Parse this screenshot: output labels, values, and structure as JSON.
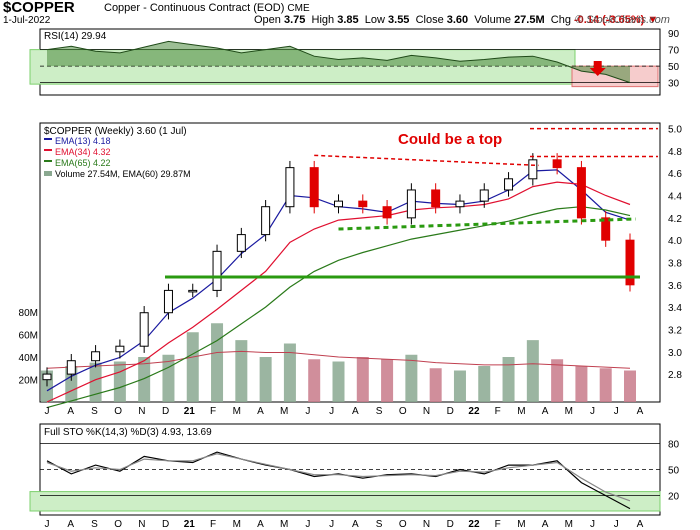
{
  "header": {
    "symbol": "$COPPER",
    "description": "Copper - Continuous Contract (EOD)",
    "exchange": "CME",
    "date": "1-Jul-2022",
    "open_label": "Open",
    "open": "3.75",
    "high_label": "High",
    "high": "3.85",
    "low_label": "Low",
    "low": "3.55",
    "close_label": "Close",
    "close": "3.60",
    "volume_label": "Volume",
    "volume": "27.5M",
    "chg_label": "Chg",
    "chg": "-0.14 (-3.65%)",
    "chg_arrow": "▼",
    "brand": "© StockCharts.com"
  },
  "chart_data": [
    {
      "type": "line",
      "panel": "RSI(14)",
      "legend": "RSI(14) 29.94",
      "ylim": [
        15,
        95
      ],
      "yticks": [
        90,
        70,
        50,
        30
      ],
      "reference_lines": [
        70,
        50,
        30
      ],
      "x_dates": [
        "Jul 20",
        "Aug 20",
        "Sep 20",
        "Oct 20",
        "Nov 20",
        "Dec 20",
        "Jan 21",
        "Feb 21",
        "Mar 21",
        "Apr 21",
        "May 21",
        "Jun 21",
        "Jul 21",
        "Aug 21",
        "Sep 21",
        "Oct 21",
        "Nov 21",
        "Dec 21",
        "Jan 22",
        "Feb 22",
        "Mar 22",
        "Apr 22",
        "May 22",
        "Jun 22",
        "Jul 22"
      ],
      "values": [
        70,
        74,
        68,
        66,
        73,
        80,
        76,
        72,
        66,
        70,
        74,
        62,
        58,
        60,
        57,
        63,
        60,
        56,
        58,
        61,
        62,
        55,
        44,
        40,
        30
      ],
      "annotations": [
        {
          "type": "arrow",
          "color": "#e00000",
          "at": "Jun 22"
        }
      ]
    },
    {
      "type": "candlestick",
      "panel": "price",
      "legend": "$COPPER (Weekly) 3.60 (1 Jul)",
      "ylim": [
        2.55,
        5.05
      ],
      "yticks": [
        5.0,
        4.8,
        4.6,
        4.4,
        4.2,
        4.0,
        3.8,
        3.6,
        3.4,
        3.2,
        3.0,
        2.8
      ],
      "x_tick_labels": [
        "J",
        "A",
        "S",
        "O",
        "N",
        "D",
        "21",
        "F",
        "M",
        "A",
        "M",
        "J",
        "J",
        "A",
        "S",
        "O",
        "N",
        "D",
        "22",
        "F",
        "M",
        "A",
        "M",
        "J",
        "J",
        "A"
      ],
      "x_dates": [
        "Jul 20",
        "Aug 20",
        "Sep 20",
        "Oct 20",
        "Nov 20",
        "Dec 20",
        "Jan 21",
        "Feb 21",
        "Mar 21",
        "Apr 21",
        "May 21",
        "Jun 21",
        "Jul 21",
        "Aug 21",
        "Sep 21",
        "Oct 21",
        "Nov 21",
        "Dec 21",
        "Jan 22",
        "Feb 22",
        "Mar 22",
        "Apr 22",
        "May 22",
        "Jun 22",
        "Jul 22"
      ],
      "close": [
        2.8,
        2.92,
        3.0,
        3.05,
        3.35,
        3.55,
        3.55,
        3.9,
        4.05,
        4.3,
        4.65,
        4.3,
        4.35,
        4.3,
        4.2,
        4.45,
        4.3,
        4.35,
        4.45,
        4.55,
        4.72,
        4.65,
        4.2,
        4.0,
        3.6
      ],
      "series": [
        {
          "name": "EMA(13)",
          "legend": "EMA(13) 4.18",
          "color": "#1a1aa0",
          "values": [
            2.65,
            2.78,
            2.88,
            2.95,
            3.1,
            3.35,
            3.48,
            3.65,
            3.88,
            4.05,
            4.4,
            4.38,
            4.3,
            4.28,
            4.25,
            4.35,
            4.33,
            4.32,
            4.35,
            4.45,
            4.62,
            4.63,
            4.45,
            4.25,
            4.18
          ]
        },
        {
          "name": "EMA(34)",
          "legend": "EMA(34) 4.32",
          "color": "#e01030",
          "values": [
            2.55,
            2.65,
            2.75,
            2.82,
            2.92,
            3.08,
            3.22,
            3.38,
            3.55,
            3.72,
            3.98,
            4.1,
            4.18,
            4.2,
            4.22,
            4.27,
            4.29,
            4.3,
            4.32,
            4.37,
            4.48,
            4.52,
            4.5,
            4.4,
            4.32
          ]
        },
        {
          "name": "EMA(65)",
          "legend": "EMA(65) 4.22",
          "color": "#2a7a1a",
          "values": [
            2.5,
            2.56,
            2.62,
            2.68,
            2.76,
            2.86,
            2.98,
            3.1,
            3.25,
            3.4,
            3.58,
            3.72,
            3.82,
            3.89,
            3.95,
            4.01,
            4.05,
            4.09,
            4.13,
            4.17,
            4.23,
            4.28,
            4.3,
            4.27,
            4.22
          ]
        }
      ],
      "volume": {
        "legend": "Volume 27.54M, EMA(60) 29.87M",
        "yticks": [
          "80M",
          "60M",
          "40M",
          "20M"
        ],
        "values": [
          28,
          32,
          35,
          36,
          40,
          42,
          62,
          70,
          55,
          40,
          52,
          38,
          36,
          40,
          38,
          42,
          30,
          28,
          32,
          40,
          55,
          38,
          32,
          30,
          28
        ],
        "ema_values": [
          30,
          31,
          32,
          33,
          34,
          36,
          40,
          44,
          45,
          44,
          44,
          42,
          40,
          39,
          38,
          37,
          35,
          34,
          33,
          33,
          34,
          33,
          32,
          31,
          30
        ]
      },
      "annotations": [
        {
          "type": "text",
          "text": "Could be a top",
          "color": "#e00000"
        },
        {
          "type": "hline",
          "style": "dashed",
          "color": "#e00000",
          "value": 5.0
        },
        {
          "type": "hline",
          "style": "dashed",
          "color": "#e00000",
          "value": 4.75
        },
        {
          "type": "trendline",
          "style": "dashed",
          "color": "#e00000",
          "from": [
            "Jun 21",
            4.76
          ],
          "to": [
            "Feb 22",
            4.67
          ]
        },
        {
          "type": "trendline",
          "style": "dashed",
          "color": "#2a9a10",
          "from": [
            "Jul 21",
            4.1
          ],
          "to": [
            "Jun 22",
            4.19
          ]
        },
        {
          "type": "hline",
          "style": "solid",
          "color": "#2a9a10",
          "value": 3.67
        }
      ]
    },
    {
      "type": "line",
      "panel": "Full STO",
      "legend": "Full STO %K(14,3) %D(3) 4.93, 13.69",
      "ylim": [
        0,
        100
      ],
      "yticks": [
        80,
        50,
        20
      ],
      "reference_lines": [
        80,
        50,
        20
      ],
      "x_dates": [
        "Jul 20",
        "Aug 20",
        "Sep 20",
        "Oct 20",
        "Nov 20",
        "Dec 20",
        "Jan 21",
        "Feb 21",
        "Mar 21",
        "Apr 21",
        "May 21",
        "Jun 21",
        "Jul 21",
        "Aug 21",
        "Sep 21",
        "Oct 21",
        "Nov 21",
        "Dec 21",
        "Jan 22",
        "Feb 22",
        "Mar 22",
        "Apr 22",
        "May 22",
        "Jun 22",
        "Jul 22"
      ],
      "series": [
        {
          "name": "%K",
          "color": "#000000",
          "values": [
            60,
            45,
            55,
            48,
            65,
            60,
            58,
            70,
            62,
            55,
            50,
            42,
            45,
            40,
            44,
            45,
            42,
            50,
            45,
            55,
            55,
            60,
            35,
            20,
            5
          ]
        },
        {
          "name": "%D",
          "color": "#888888",
          "values": [
            58,
            48,
            52,
            50,
            62,
            60,
            60,
            68,
            62,
            56,
            50,
            44,
            44,
            42,
            43,
            44,
            43,
            48,
            47,
            52,
            55,
            58,
            40,
            24,
            14
          ]
        }
      ],
      "x_tick_labels": [
        "J",
        "A",
        "S",
        "O",
        "N",
        "D",
        "21",
        "F",
        "M",
        "A",
        "M",
        "J",
        "J",
        "A",
        "S",
        "O",
        "N",
        "D",
        "22",
        "F",
        "M",
        "A",
        "M",
        "J",
        "J",
        "A"
      ]
    }
  ],
  "colors": {
    "up_candle": "#000000",
    "down_candle": "#e00000",
    "annotation_red": "#e00000",
    "annotation_green": "#2a9a10",
    "rsi_fill": "#2f7a1f",
    "volume_up": "#8aa890",
    "volume_down": "#c87a8a"
  }
}
